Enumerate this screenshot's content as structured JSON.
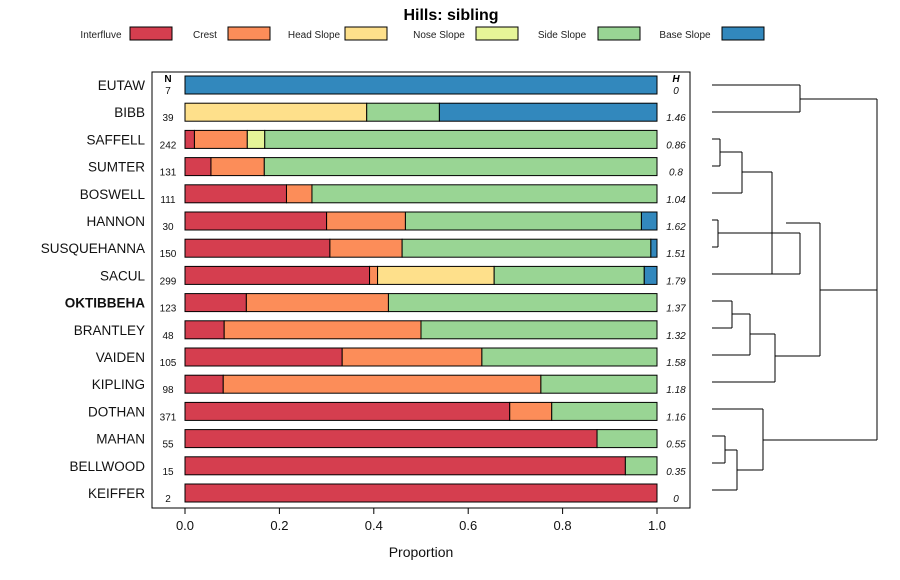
{
  "chart_data": {
    "type": "bar",
    "orientation": "horizontal",
    "stacked": true,
    "title": "Hills: sibling",
    "xlabel": "Proportion",
    "xlim": [
      0,
      1
    ],
    "xticks": [
      "0.0",
      "0.2",
      "0.4",
      "0.6",
      "0.8",
      "1.0"
    ],
    "n_header": "N",
    "h_header": "H",
    "highlighted_category": "OKTIBBEHA",
    "legend": [
      {
        "name": "Interfluve",
        "color": "#d53e4f"
      },
      {
        "name": "Crest",
        "color": "#fc8d59"
      },
      {
        "name": "Head Slope",
        "color": "#fee08b"
      },
      {
        "name": "Nose Slope",
        "color": "#e6f598"
      },
      {
        "name": "Side Slope",
        "color": "#99d594"
      },
      {
        "name": "Base Slope",
        "color": "#3288bd"
      }
    ],
    "categories": [
      "EUTAW",
      "BIBB",
      "SAFFELL",
      "SUMTER",
      "BOSWELL",
      "HANNON",
      "SUSQUEHANNA",
      "SACUL",
      "OKTIBBEHA",
      "BRANTLEY",
      "VAIDEN",
      "KIPLING",
      "DOTHAN",
      "MAHAN",
      "BELLWOOD",
      "KEIFFER"
    ],
    "n": [
      "7",
      "39",
      "242",
      "131",
      "111",
      "30",
      "150",
      "299",
      "123",
      "48",
      "105",
      "98",
      "371",
      "55",
      "15",
      "2"
    ],
    "h": [
      "0",
      "1.46",
      "0.86",
      "0.8",
      "1.04",
      "1.62",
      "1.51",
      "1.79",
      "1.37",
      "1.32",
      "1.58",
      "1.18",
      "1.16",
      "0.55",
      "0.35",
      "0"
    ],
    "series": [
      {
        "name": "Interfluve",
        "values": [
          0,
          0,
          0.02,
          0.055,
          0.215,
          0.3,
          0.307,
          0.391,
          0.13,
          0.083,
          0.333,
          0.081,
          0.688,
          0.873,
          0.933,
          1
        ]
      },
      {
        "name": "Crest",
        "values": [
          0,
          0,
          0.112,
          0.113,
          0.054,
          0.167,
          0.153,
          0.017,
          0.301,
          0.417,
          0.296,
          0.673,
          0.089,
          0,
          0,
          0
        ]
      },
      {
        "name": "Head Slope",
        "values": [
          0,
          0.385,
          0,
          0,
          0,
          0,
          0,
          0.247,
          0,
          0,
          0,
          0,
          0,
          0,
          0,
          0
        ]
      },
      {
        "name": "Nose Slope",
        "values": [
          0,
          0,
          0.037,
          0,
          0,
          0,
          0,
          0,
          0,
          0,
          0,
          0,
          0,
          0,
          0,
          0
        ]
      },
      {
        "name": "Side Slope",
        "values": [
          0,
          0.154,
          0.831,
          0.832,
          0.731,
          0.5,
          0.527,
          0.318,
          0.569,
          0.5,
          0.371,
          0.246,
          0.223,
          0.127,
          0.067,
          0
        ]
      },
      {
        "name": "Base Slope",
        "values": [
          1,
          0.461,
          0,
          0,
          0,
          0.033,
          0.013,
          0.027,
          0,
          0,
          0,
          0,
          0,
          0,
          0,
          0
        ]
      }
    ]
  }
}
